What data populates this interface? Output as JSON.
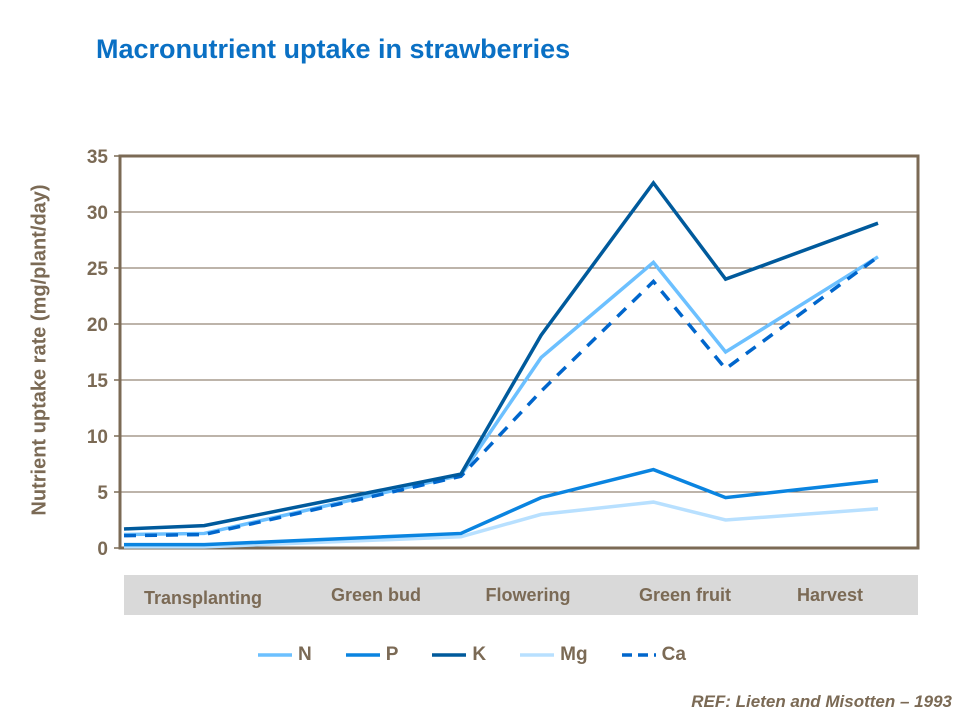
{
  "chart_data": {
    "type": "line",
    "title": "Macronutrient uptake in strawberries",
    "ylabel": "Nutrient uptake rate (mg/plant/day)",
    "xlabel": "",
    "ylim": [
      0,
      35
    ],
    "yticks": [
      "0",
      "5",
      "10",
      "15",
      "20",
      "25",
      "30",
      "35"
    ],
    "grid": true,
    "categories": [
      "Transplanting",
      "Green bud",
      "Flowering",
      "Green fruit",
      "Harvest"
    ],
    "x": [
      0,
      0.5,
      2.1,
      2.6,
      3.3,
      3.75,
      4.7
    ],
    "series": [
      {
        "name": "N",
        "color": "#6cc0ff",
        "dashed": false,
        "values": [
          1.2,
          1.3,
          6.5,
          17,
          25.5,
          17.5,
          26
        ]
      },
      {
        "name": "P",
        "color": "#0a84e0",
        "dashed": false,
        "values": [
          0.3,
          0.3,
          1.3,
          4.5,
          7,
          4.5,
          6
        ]
      },
      {
        "name": "K",
        "color": "#005a9c",
        "dashed": false,
        "values": [
          1.7,
          2.0,
          6.6,
          19,
          32.6,
          24,
          29
        ]
      },
      {
        "name": "Mg",
        "color": "#b8e0ff",
        "dashed": false,
        "values": [
          0.1,
          0.1,
          1.0,
          3.0,
          4.1,
          2.5,
          3.5
        ]
      },
      {
        "name": "Ca",
        "color": "#0066cc",
        "dashed": true,
        "values": [
          1.1,
          1.2,
          6.4,
          14,
          23.8,
          16,
          26
        ]
      }
    ],
    "legend": "bottom",
    "annotation": "REF:  Lieten and Misotten – 1993"
  }
}
